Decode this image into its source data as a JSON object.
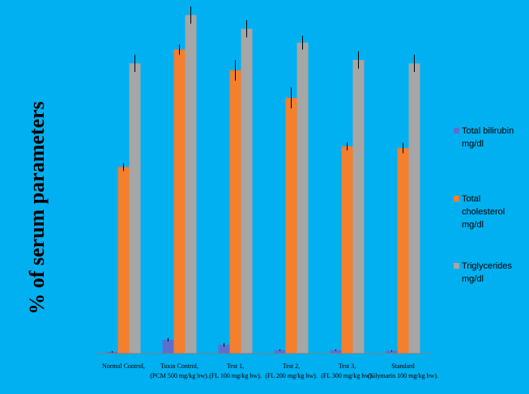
{
  "chart_data": {
    "type": "bar",
    "ylabel": "% of serum parameters",
    "xlabel": "",
    "categories": [
      [
        "Normal Control,"
      ],
      [
        "Toxin Control,",
        "(PCM 500 mg/kg bw)."
      ],
      [
        "Test 1,",
        "(FL 100 mg/kg bw)."
      ],
      [
        "Test 2,",
        "(FL 200 mg/kg bw)."
      ],
      [
        "Test 3,",
        "(FL 300 mg/kg bw)."
      ],
      [
        "Standard",
        "(Silymarin 100 mg/kg bw)."
      ]
    ],
    "ylim": [
      0,
      100
    ],
    "grid": false,
    "legend_position": "right",
    "series": [
      {
        "name_lines": [
          "Total bilirubin",
          "mg/dl"
        ],
        "color": "#5b6fd0",
        "values": [
          0.5,
          4,
          2.5,
          1,
          1,
          0.8
        ],
        "errors": [
          0.2,
          0.5,
          0.5,
          0.2,
          0.2,
          0.2
        ]
      },
      {
        "name_lines": [
          "Total",
          "cholesterol",
          "mg/dl"
        ],
        "color": "#f47f2f",
        "values": [
          54,
          88,
          82,
          74,
          60,
          59.5
        ],
        "errors": [
          1.2,
          1.5,
          3,
          3,
          1.2,
          1.5
        ]
      },
      {
        "name_lines": [
          "Triglycerides",
          "mg/dl"
        ],
        "color": "#a6a6a6",
        "values": [
          84,
          98,
          94,
          90,
          85,
          84
        ],
        "errors": [
          2.5,
          2.5,
          2.5,
          2,
          2.5,
          2.5
        ]
      }
    ]
  }
}
